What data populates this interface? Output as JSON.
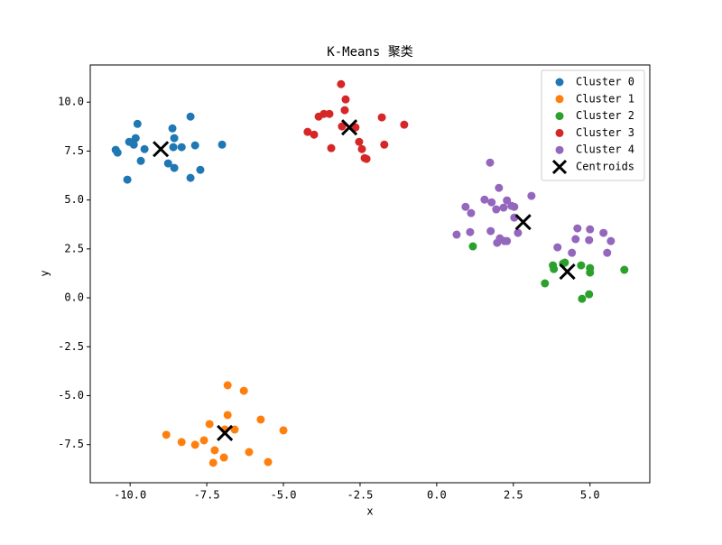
{
  "chart_data": {
    "type": "scatter",
    "title": "K-Means 聚类",
    "x_label": "x",
    "y_label": "y",
    "xlim": [
      -11.3,
      6.95
    ],
    "ylim": [
      -9.45,
      11.9
    ],
    "xticks": [
      {
        "value": -10,
        "label": "-10.0"
      },
      {
        "value": -7.5,
        "label": "-7.5"
      },
      {
        "value": -5,
        "label": "-5.0"
      },
      {
        "value": -2.5,
        "label": "-2.5"
      },
      {
        "value": 0,
        "label": "0.0"
      },
      {
        "value": 2.5,
        "label": "2.5"
      },
      {
        "value": 5,
        "label": "5.0"
      }
    ],
    "yticks": [
      {
        "value": -7.5,
        "label": "-7.5"
      },
      {
        "value": -5,
        "label": "-5.0"
      },
      {
        "value": -2.5,
        "label": "-2.5"
      },
      {
        "value": 0,
        "label": "0.0"
      },
      {
        "value": 2.5,
        "label": "2.5"
      },
      {
        "value": 5,
        "label": "5.0"
      },
      {
        "value": 7.5,
        "label": "7.5"
      },
      {
        "value": 10,
        "label": "10.0"
      }
    ],
    "legend": "upper right",
    "series": [
      {
        "name": "Cluster 0",
        "color": "#1f77b4",
        "marker": "o",
        "x": [
          -10.47,
          -10.41,
          -9.76,
          -9.82,
          -10.03,
          -9.88,
          -9.53,
          -9.65,
          -10.09,
          -8.62,
          -8.56,
          -8.59,
          -8.32,
          -8.76,
          -8.56,
          -8.03,
          -7.88,
          -7.71,
          -8.03,
          -7.0
        ],
        "y": [
          7.56,
          7.42,
          8.89,
          8.16,
          7.97,
          7.83,
          7.6,
          7.0,
          6.04,
          8.66,
          8.16,
          7.7,
          7.7,
          6.87,
          6.64,
          9.26,
          7.79,
          6.54,
          6.13,
          7.83
        ]
      },
      {
        "name": "Cluster 1",
        "color": "#ff7f0e",
        "marker": "o",
        "x": [
          -6.82,
          -6.29,
          -7.41,
          -6.82,
          -6.91,
          -6.59,
          -5.74,
          -8.82,
          -8.32,
          -7.88,
          -7.59,
          -7.24,
          -6.94,
          -7.29,
          -6.12,
          -5.5,
          -5.0
        ],
        "y": [
          -4.47,
          -4.75,
          -6.45,
          -5.99,
          -6.73,
          -6.73,
          -6.22,
          -7.0,
          -7.37,
          -7.51,
          -7.28,
          -7.79,
          -8.16,
          -8.43,
          -7.88,
          -8.39,
          -6.77
        ]
      },
      {
        "name": "Cluster 2",
        "color": "#2ca02c",
        "marker": "o",
        "x": [
          1.18,
          3.53,
          3.79,
          3.82,
          4.12,
          4.18,
          4.71,
          5.0,
          5.0,
          4.74,
          4.97,
          6.12
        ],
        "y": [
          2.63,
          0.74,
          1.66,
          1.47,
          1.75,
          1.8,
          1.66,
          1.52,
          1.29,
          -0.05,
          0.18,
          1.43
        ]
      },
      {
        "name": "Cluster 3",
        "color": "#d62728",
        "marker": "o",
        "x": [
          -3.12,
          -2.97,
          -3.0,
          -3.85,
          -3.68,
          -3.5,
          -3.09,
          -4.21,
          -4.0,
          -3.44,
          -2.65,
          -2.53,
          -2.44,
          -2.29,
          -2.35,
          -1.79,
          -1.71,
          -1.06
        ],
        "y": [
          10.92,
          10.14,
          9.59,
          9.26,
          9.4,
          9.4,
          8.76,
          8.48,
          8.34,
          7.65,
          8.71,
          7.97,
          7.6,
          7.1,
          7.14,
          9.22,
          7.83,
          8.85
        ]
      },
      {
        "name": "Cluster 4",
        "color": "#9467bd",
        "marker": "o",
        "x": [
          1.74,
          2.03,
          3.09,
          1.56,
          1.79,
          2.29,
          2.44,
          2.53,
          1.94,
          2.18,
          0.94,
          1.12,
          2.53,
          0.65,
          1.09,
          1.76,
          2.06,
          2.29,
          1.97,
          2.21,
          2.65,
          4.59,
          5.0,
          5.44,
          5.68,
          4.53,
          4.97,
          3.94,
          4.41,
          5.56
        ],
        "y": [
          6.91,
          5.62,
          5.21,
          5.02,
          4.88,
          4.98,
          4.7,
          4.65,
          4.52,
          4.61,
          4.65,
          4.33,
          4.1,
          3.23,
          3.36,
          3.41,
          3.04,
          2.9,
          2.81,
          2.9,
          3.32,
          3.55,
          3.5,
          3.32,
          2.9,
          3.0,
          2.95,
          2.58,
          2.3,
          2.3
        ]
      },
      {
        "name": "Centroids",
        "color": "#000000",
        "marker": "x",
        "x": [
          -9.0,
          -6.91,
          4.26,
          -2.85,
          2.82
        ],
        "y": [
          7.6,
          -6.91,
          1.34,
          8.71,
          3.87
        ]
      }
    ]
  }
}
